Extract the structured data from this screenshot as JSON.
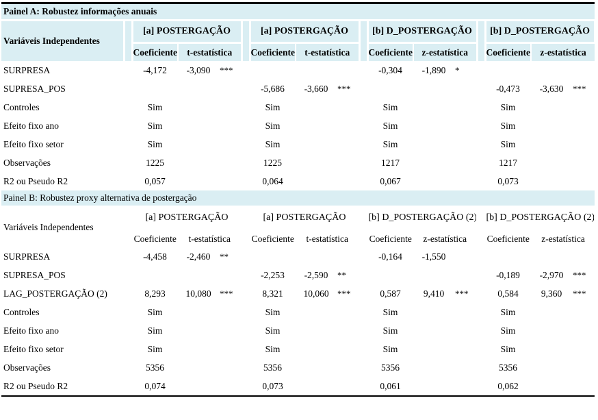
{
  "colors": {
    "header_bg": "#daeef3",
    "rule": "#000000",
    "text": "#000000"
  },
  "panels": [
    {
      "id": "a",
      "title": "Painel A: Robustez informações anuais",
      "emphasized_header": true,
      "row_header_label": "Variáveis Independentes",
      "groups": [
        {
          "label": "[a] POSTERGAÇÃO",
          "coef_label": "Coeficiente",
          "stat_label": "t-estatística"
        },
        {
          "label": "[a] POSTERGAÇÃO",
          "coef_label": "Coeficiente",
          "stat_label": "t-estatística"
        },
        {
          "label": "[b] D_POSTERGAÇÃO",
          "coef_label": "Coeficiente",
          "stat_label": "z-estatística"
        },
        {
          "label": "[b] D_POSTERGAÇÃO",
          "coef_label": "Coeficiente",
          "stat_label": "z-estatística"
        }
      ],
      "rows": [
        {
          "label": "SURPRESA",
          "cells": [
            [
              "-4,172",
              "-3,090",
              "***"
            ],
            [
              "",
              "",
              ""
            ],
            [
              "-0,304",
              "-1,890",
              "*"
            ],
            [
              "",
              "",
              ""
            ]
          ]
        },
        {
          "label": "SUPRESA_POS",
          "cells": [
            [
              "",
              "",
              ""
            ],
            [
              "-5,686",
              "-3,660",
              "***"
            ],
            [
              "",
              "",
              ""
            ],
            [
              "-0,473",
              "-3,630",
              "***"
            ]
          ]
        },
        {
          "label": "Controles",
          "cells": [
            [
              "Sim",
              "",
              ""
            ],
            [
              "Sim",
              "",
              ""
            ],
            [
              "Sim",
              "",
              ""
            ],
            [
              "Sim",
              "",
              ""
            ]
          ]
        },
        {
          "label": "Efeito fixo ano",
          "cells": [
            [
              "Sim",
              "",
              ""
            ],
            [
              "Sim",
              "",
              ""
            ],
            [
              "Sim",
              "",
              ""
            ],
            [
              "Sim",
              "",
              ""
            ]
          ]
        },
        {
          "label": "Efeito fixo setor",
          "cells": [
            [
              "Sim",
              "",
              ""
            ],
            [
              "Sim",
              "",
              ""
            ],
            [
              "Sim",
              "",
              ""
            ],
            [
              "Sim",
              "",
              ""
            ]
          ]
        },
        {
          "label": "Observações",
          "cells": [
            [
              "1225",
              "",
              ""
            ],
            [
              "1225",
              "",
              ""
            ],
            [
              "1217",
              "",
              ""
            ],
            [
              "1217",
              "",
              ""
            ]
          ]
        },
        {
          "label": "R2 ou Pseudo R2",
          "cells": [
            [
              "0,057",
              "",
              ""
            ],
            [
              "0,064",
              "",
              ""
            ],
            [
              "0,067",
              "",
              ""
            ],
            [
              "0,073",
              "",
              ""
            ]
          ]
        }
      ]
    },
    {
      "id": "b",
      "title": "Painel B: Robustez proxy alternativa de postergação",
      "emphasized_header": false,
      "row_header_label": "Variáveis Independentes",
      "groups": [
        {
          "label": "[a] POSTERGAÇÃO",
          "coef_label": "Coeficiente",
          "stat_label": "t-estatística"
        },
        {
          "label": "[a] POSTERGAÇÃO",
          "coef_label": "Coeficiente",
          "stat_label": "t-estatística"
        },
        {
          "label": "[b] D_POSTERGAÇÃO (2)",
          "coef_label": "Coeficiente",
          "stat_label": "z-estatística"
        },
        {
          "label": "[b] D_POSTERGAÇÃO (2)",
          "coef_label": "Coeficiente",
          "stat_label": "z-estatística"
        }
      ],
      "rows": [
        {
          "label": "SURPRESA",
          "cells": [
            [
              "-4,458",
              "-2,460",
              "**"
            ],
            [
              "",
              "",
              ""
            ],
            [
              "-0,164",
              "-1,550",
              ""
            ],
            [
              "",
              "",
              ""
            ]
          ]
        },
        {
          "label": "SUPRESA_POS",
          "cells": [
            [
              "",
              "",
              ""
            ],
            [
              "-2,253",
              "-2,590",
              "**"
            ],
            [
              "",
              "",
              ""
            ],
            [
              "-0,189",
              "-2,970",
              "***"
            ]
          ]
        },
        {
          "label": "LAG_POSTERGAÇÃO (2)",
          "cells": [
            [
              "8,293",
              "10,080",
              "***"
            ],
            [
              "8,321",
              "10,060",
              "***"
            ],
            [
              "0,587",
              "9,410",
              "***"
            ],
            [
              "0,584",
              "9,360",
              "***"
            ]
          ]
        },
        {
          "label": "Controles",
          "cells": [
            [
              "Sim",
              "",
              ""
            ],
            [
              "Sim",
              "",
              ""
            ],
            [
              "Sim",
              "",
              ""
            ],
            [
              "Sim",
              "",
              ""
            ]
          ]
        },
        {
          "label": "Efeito fixo ano",
          "cells": [
            [
              "Sim",
              "",
              ""
            ],
            [
              "Sim",
              "",
              ""
            ],
            [
              "Sim",
              "",
              ""
            ],
            [
              "Sim",
              "",
              ""
            ]
          ]
        },
        {
          "label": "Efeito fixo setor",
          "cells": [
            [
              "Sim",
              "",
              ""
            ],
            [
              "Sim",
              "",
              ""
            ],
            [
              "Sim",
              "",
              ""
            ],
            [
              "Sim",
              "",
              ""
            ]
          ]
        },
        {
          "label": "Observações",
          "cells": [
            [
              "5356",
              "",
              ""
            ],
            [
              "5356",
              "",
              ""
            ],
            [
              "5356",
              "",
              ""
            ],
            [
              "5356",
              "",
              ""
            ]
          ]
        },
        {
          "label": "R2 ou Pseudo R2",
          "cells": [
            [
              "0,074",
              "",
              ""
            ],
            [
              "0,073",
              "",
              ""
            ],
            [
              "0,061",
              "",
              ""
            ],
            [
              "0,062",
              "",
              ""
            ]
          ]
        }
      ]
    }
  ]
}
